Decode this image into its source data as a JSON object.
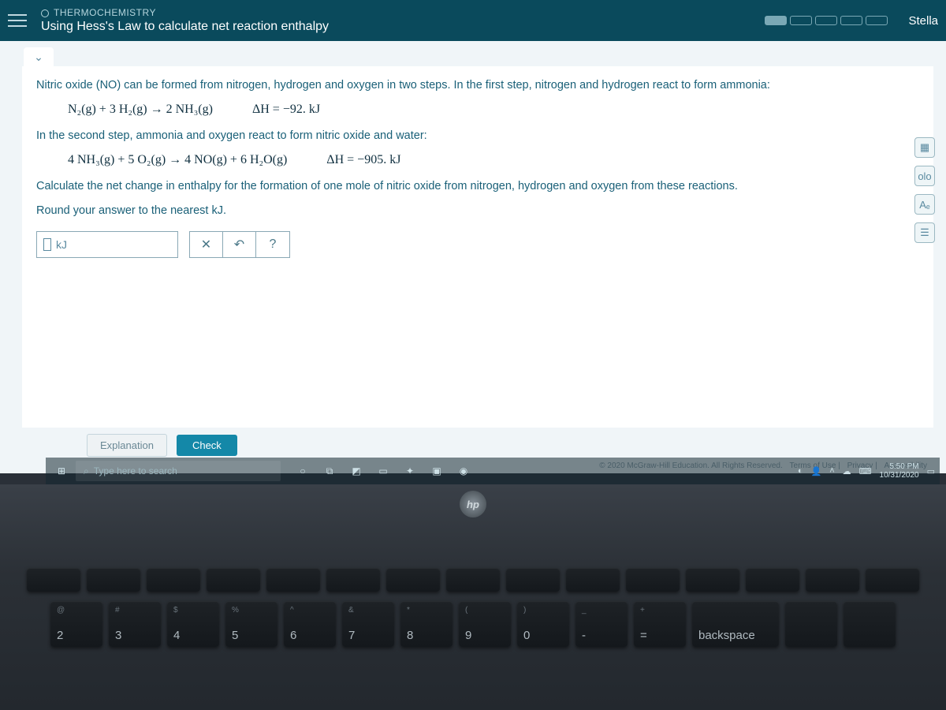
{
  "header": {
    "chapter": "THERMOCHEMISTRY",
    "lesson": "Using Hess's Law to calculate net reaction enthalpy",
    "user": "Stella",
    "progress_segments": 5,
    "progress_filled": 1
  },
  "problem": {
    "intro": "Nitric oxide (NO) can be formed from nitrogen, hydrogen and oxygen in two steps. In the first step, nitrogen and hydrogen react to form ammonia:",
    "eq1_lhs": "N₂(g) + 3 H₂(g) → 2 NH₃(g)",
    "eq1_dh": "ΔH = −92. kJ",
    "mid": "In the second step, ammonia and oxygen react to form nitric oxide and water:",
    "eq2_lhs": "4 NH₃(g) + 5 O₂(g) → 4 NO(g) + 6 H₂O(g)",
    "eq2_dh": "ΔH = −905. kJ",
    "prompt1": "Calculate the net change in enthalpy for the formation of one mole of nitric oxide from nitrogen, hydrogen and oxygen from these reactions.",
    "prompt2": "Round your answer to the nearest kJ.",
    "unit": "kJ"
  },
  "tools": {
    "clear": "✕",
    "undo": "↶",
    "help": "?"
  },
  "side": {
    "calc": "▦",
    "table": "olo",
    "ref": "Aₑ",
    "notes": "☰"
  },
  "buttons": {
    "explanation": "Explanation",
    "check": "Check"
  },
  "legal": {
    "copyright": "© 2020 McGraw-Hill Education. All Rights Reserved.",
    "terms": "Terms of Use",
    "privacy": "Privacy",
    "accessibility": "Accessibility"
  },
  "taskbar": {
    "search_placeholder": "Type here to search",
    "time": "5:50 PM",
    "date": "10/31/2020"
  },
  "logo": "hp",
  "keys": {
    "num2": {
      "t": "@",
      "b": "2"
    },
    "num3": {
      "t": "#",
      "b": "3"
    },
    "num4": {
      "t": "$",
      "b": "4"
    },
    "num5": {
      "t": "%",
      "b": "5"
    },
    "num6": {
      "t": "^",
      "b": "6"
    },
    "num7": {
      "t": "&",
      "b": "7"
    },
    "num8": {
      "t": "*",
      "b": "8"
    },
    "num9": {
      "t": "(",
      "b": "9"
    },
    "num0": {
      "t": ")",
      "b": "0"
    },
    "dash": {
      "t": "_",
      "b": "-"
    },
    "eq": {
      "t": "+",
      "b": "="
    },
    "bksp": {
      "t": "",
      "b": "backspace"
    }
  }
}
